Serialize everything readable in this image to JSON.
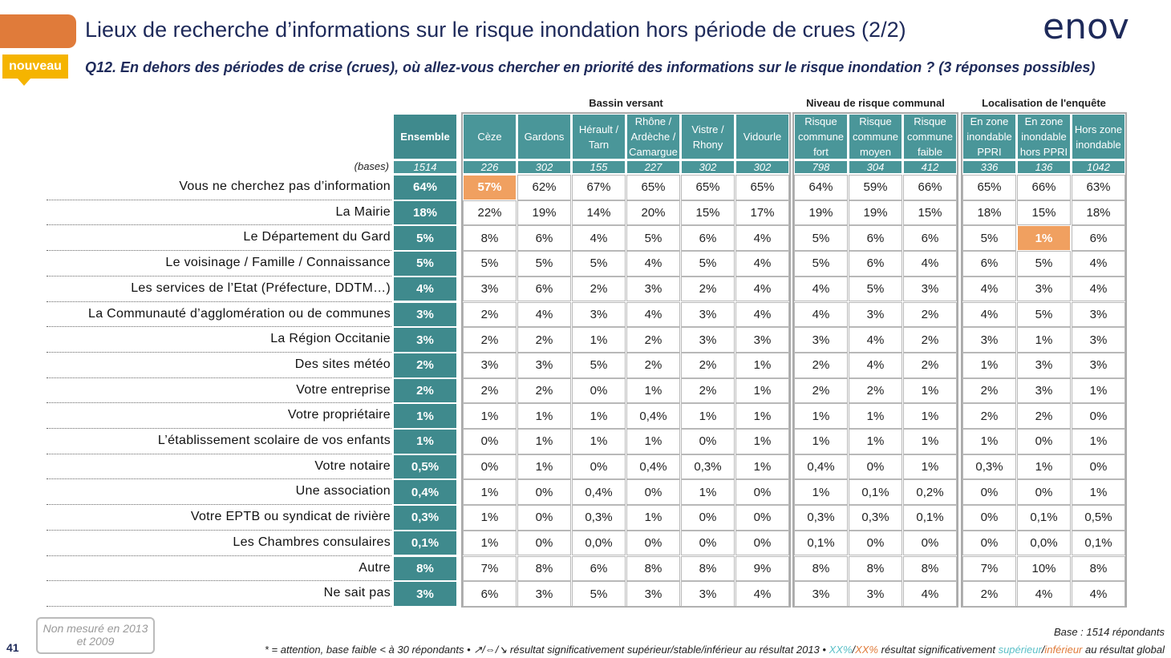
{
  "header": {
    "title": "Lieux de recherche d’informations sur le risque inondation hors période de crues (2/2)",
    "question": "Q12. En dehors des périodes de crise (crues), où allez-vous chercher en priorité des informations sur le risque inondation ? (3 réponses possibles)",
    "badge": "nouveau",
    "logo": "enov"
  },
  "table": {
    "groups": [
      "Bassin versant",
      "Niveau de risque communal",
      "Localisation de l'enquête"
    ],
    "columns": [
      "Ensemble",
      "Cèze",
      "Gardons",
      "Hérault / Tarn",
      "Rhône / Ardèche / Camargue",
      "Vistre / Rhony",
      "Vidourle",
      "Risque commune fort",
      "Risque commune moyen",
      "Risque commune faible",
      "En zone inondable PPRI",
      "En zone inondable hors PPRI",
      "Hors zone inondable"
    ],
    "bases_label": "(bases)",
    "bases": [
      "1514",
      "226",
      "302",
      "155",
      "227",
      "302",
      "302",
      "798",
      "304",
      "412",
      "336",
      "136",
      "1042"
    ],
    "rows": [
      {
        "label": "Vous ne cherchez pas d’information",
        "values": [
          "64%",
          "57%",
          "62%",
          "67%",
          "65%",
          "65%",
          "65%",
          "64%",
          "59%",
          "66%",
          "65%",
          "66%",
          "63%"
        ]
      },
      {
        "label": "La Mairie",
        "values": [
          "18%",
          "22%",
          "19%",
          "14%",
          "20%",
          "15%",
          "17%",
          "19%",
          "19%",
          "15%",
          "18%",
          "15%",
          "18%"
        ]
      },
      {
        "label": "Le Département du Gard",
        "values": [
          "5%",
          "8%",
          "6%",
          "4%",
          "5%",
          "6%",
          "4%",
          "5%",
          "6%",
          "6%",
          "5%",
          "1%",
          "6%"
        ]
      },
      {
        "label": "Le voisinage / Famille / Connaissance",
        "values": [
          "5%",
          "5%",
          "5%",
          "5%",
          "4%",
          "5%",
          "4%",
          "5%",
          "6%",
          "4%",
          "6%",
          "5%",
          "4%"
        ]
      },
      {
        "label": "Les services de l’Etat (Préfecture, DDTM…)",
        "values": [
          "4%",
          "3%",
          "6%",
          "2%",
          "3%",
          "2%",
          "4%",
          "4%",
          "5%",
          "3%",
          "4%",
          "3%",
          "4%"
        ]
      },
      {
        "label": "La Communauté d’agglomération ou de communes",
        "values": [
          "3%",
          "2%",
          "4%",
          "3%",
          "4%",
          "3%",
          "4%",
          "4%",
          "3%",
          "2%",
          "4%",
          "5%",
          "3%"
        ]
      },
      {
        "label": "La Région Occitanie",
        "values": [
          "3%",
          "2%",
          "2%",
          "1%",
          "2%",
          "3%",
          "3%",
          "3%",
          "4%",
          "2%",
          "3%",
          "1%",
          "3%"
        ]
      },
      {
        "label": "Des sites météo",
        "values": [
          "2%",
          "3%",
          "3%",
          "5%",
          "2%",
          "2%",
          "1%",
          "2%",
          "4%",
          "2%",
          "1%",
          "3%",
          "3%"
        ]
      },
      {
        "label": "Votre entreprise",
        "values": [
          "2%",
          "2%",
          "2%",
          "0%",
          "1%",
          "2%",
          "1%",
          "2%",
          "2%",
          "1%",
          "2%",
          "3%",
          "1%"
        ]
      },
      {
        "label": "Votre propriétaire",
        "values": [
          "1%",
          "1%",
          "1%",
          "1%",
          "0,4%",
          "1%",
          "1%",
          "1%",
          "1%",
          "1%",
          "2%",
          "2%",
          "0%"
        ]
      },
      {
        "label": "L’établissement scolaire de vos enfants",
        "values": [
          "1%",
          "0%",
          "1%",
          "1%",
          "1%",
          "0%",
          "1%",
          "1%",
          "1%",
          "1%",
          "1%",
          "0%",
          "1%"
        ]
      },
      {
        "label": "Votre notaire",
        "values": [
          "0,5%",
          "0%",
          "1%",
          "0%",
          "0,4%",
          "0,3%",
          "1%",
          "0,4%",
          "0%",
          "1%",
          "0,3%",
          "1%",
          "0%"
        ]
      },
      {
        "label": "Une association",
        "values": [
          "0,4%",
          "1%",
          "0%",
          "0,4%",
          "0%",
          "1%",
          "0%",
          "1%",
          "0,1%",
          "0,2%",
          "0%",
          "0%",
          "1%"
        ]
      },
      {
        "label": "Votre EPTB ou syndicat de rivière",
        "values": [
          "0,3%",
          "1%",
          "0%",
          "0,3%",
          "1%",
          "0%",
          "0%",
          "0,3%",
          "0,3%",
          "0,1%",
          "0%",
          "0,1%",
          "0,5%"
        ]
      },
      {
        "label": "Les Chambres consulaires",
        "values": [
          "0,1%",
          "1%",
          "0%",
          "0,0%",
          "0%",
          "0%",
          "0%",
          "0,1%",
          "0%",
          "0%",
          "0%",
          "0,0%",
          "0,1%"
        ]
      },
      {
        "label": "Autre",
        "values": [
          "8%",
          "7%",
          "8%",
          "6%",
          "8%",
          "8%",
          "9%",
          "8%",
          "8%",
          "8%",
          "7%",
          "10%",
          "8%"
        ]
      },
      {
        "label": "Ne sait pas",
        "values": [
          "3%",
          "6%",
          "3%",
          "5%",
          "3%",
          "3%",
          "4%",
          "3%",
          "3%",
          "4%",
          "2%",
          "4%",
          "4%"
        ]
      }
    ],
    "highlighted": [
      {
        "row": 0,
        "col": 1
      },
      {
        "row": 2,
        "col": 11
      }
    ],
    "highlight_color": "#f0a060"
  },
  "footer": {
    "page": "41",
    "note": "Non mesuré en 2013 et 2009",
    "base": "Base : 1514 répondants",
    "legend": [
      {
        "text": "* = attention, base faible < à 30 répondants • ↗/⇔/↘ résultat significativement supérieur/stable/inférieur au résultat 2013 • ",
        "color": "#222"
      },
      {
        "text": "XX%",
        "color": "#5bc0c8"
      },
      {
        "text": "/",
        "color": "#222"
      },
      {
        "text": "XX%",
        "color": "#e07b3a"
      },
      {
        "text": " résultat significativement ",
        "color": "#222"
      },
      {
        "text": "supérieur",
        "color": "#5bc0c8"
      },
      {
        "text": "/",
        "color": "#222"
      },
      {
        "text": "inférieur",
        "color": "#e07b3a"
      },
      {
        "text": " au résultat global",
        "color": "#222"
      }
    ]
  }
}
